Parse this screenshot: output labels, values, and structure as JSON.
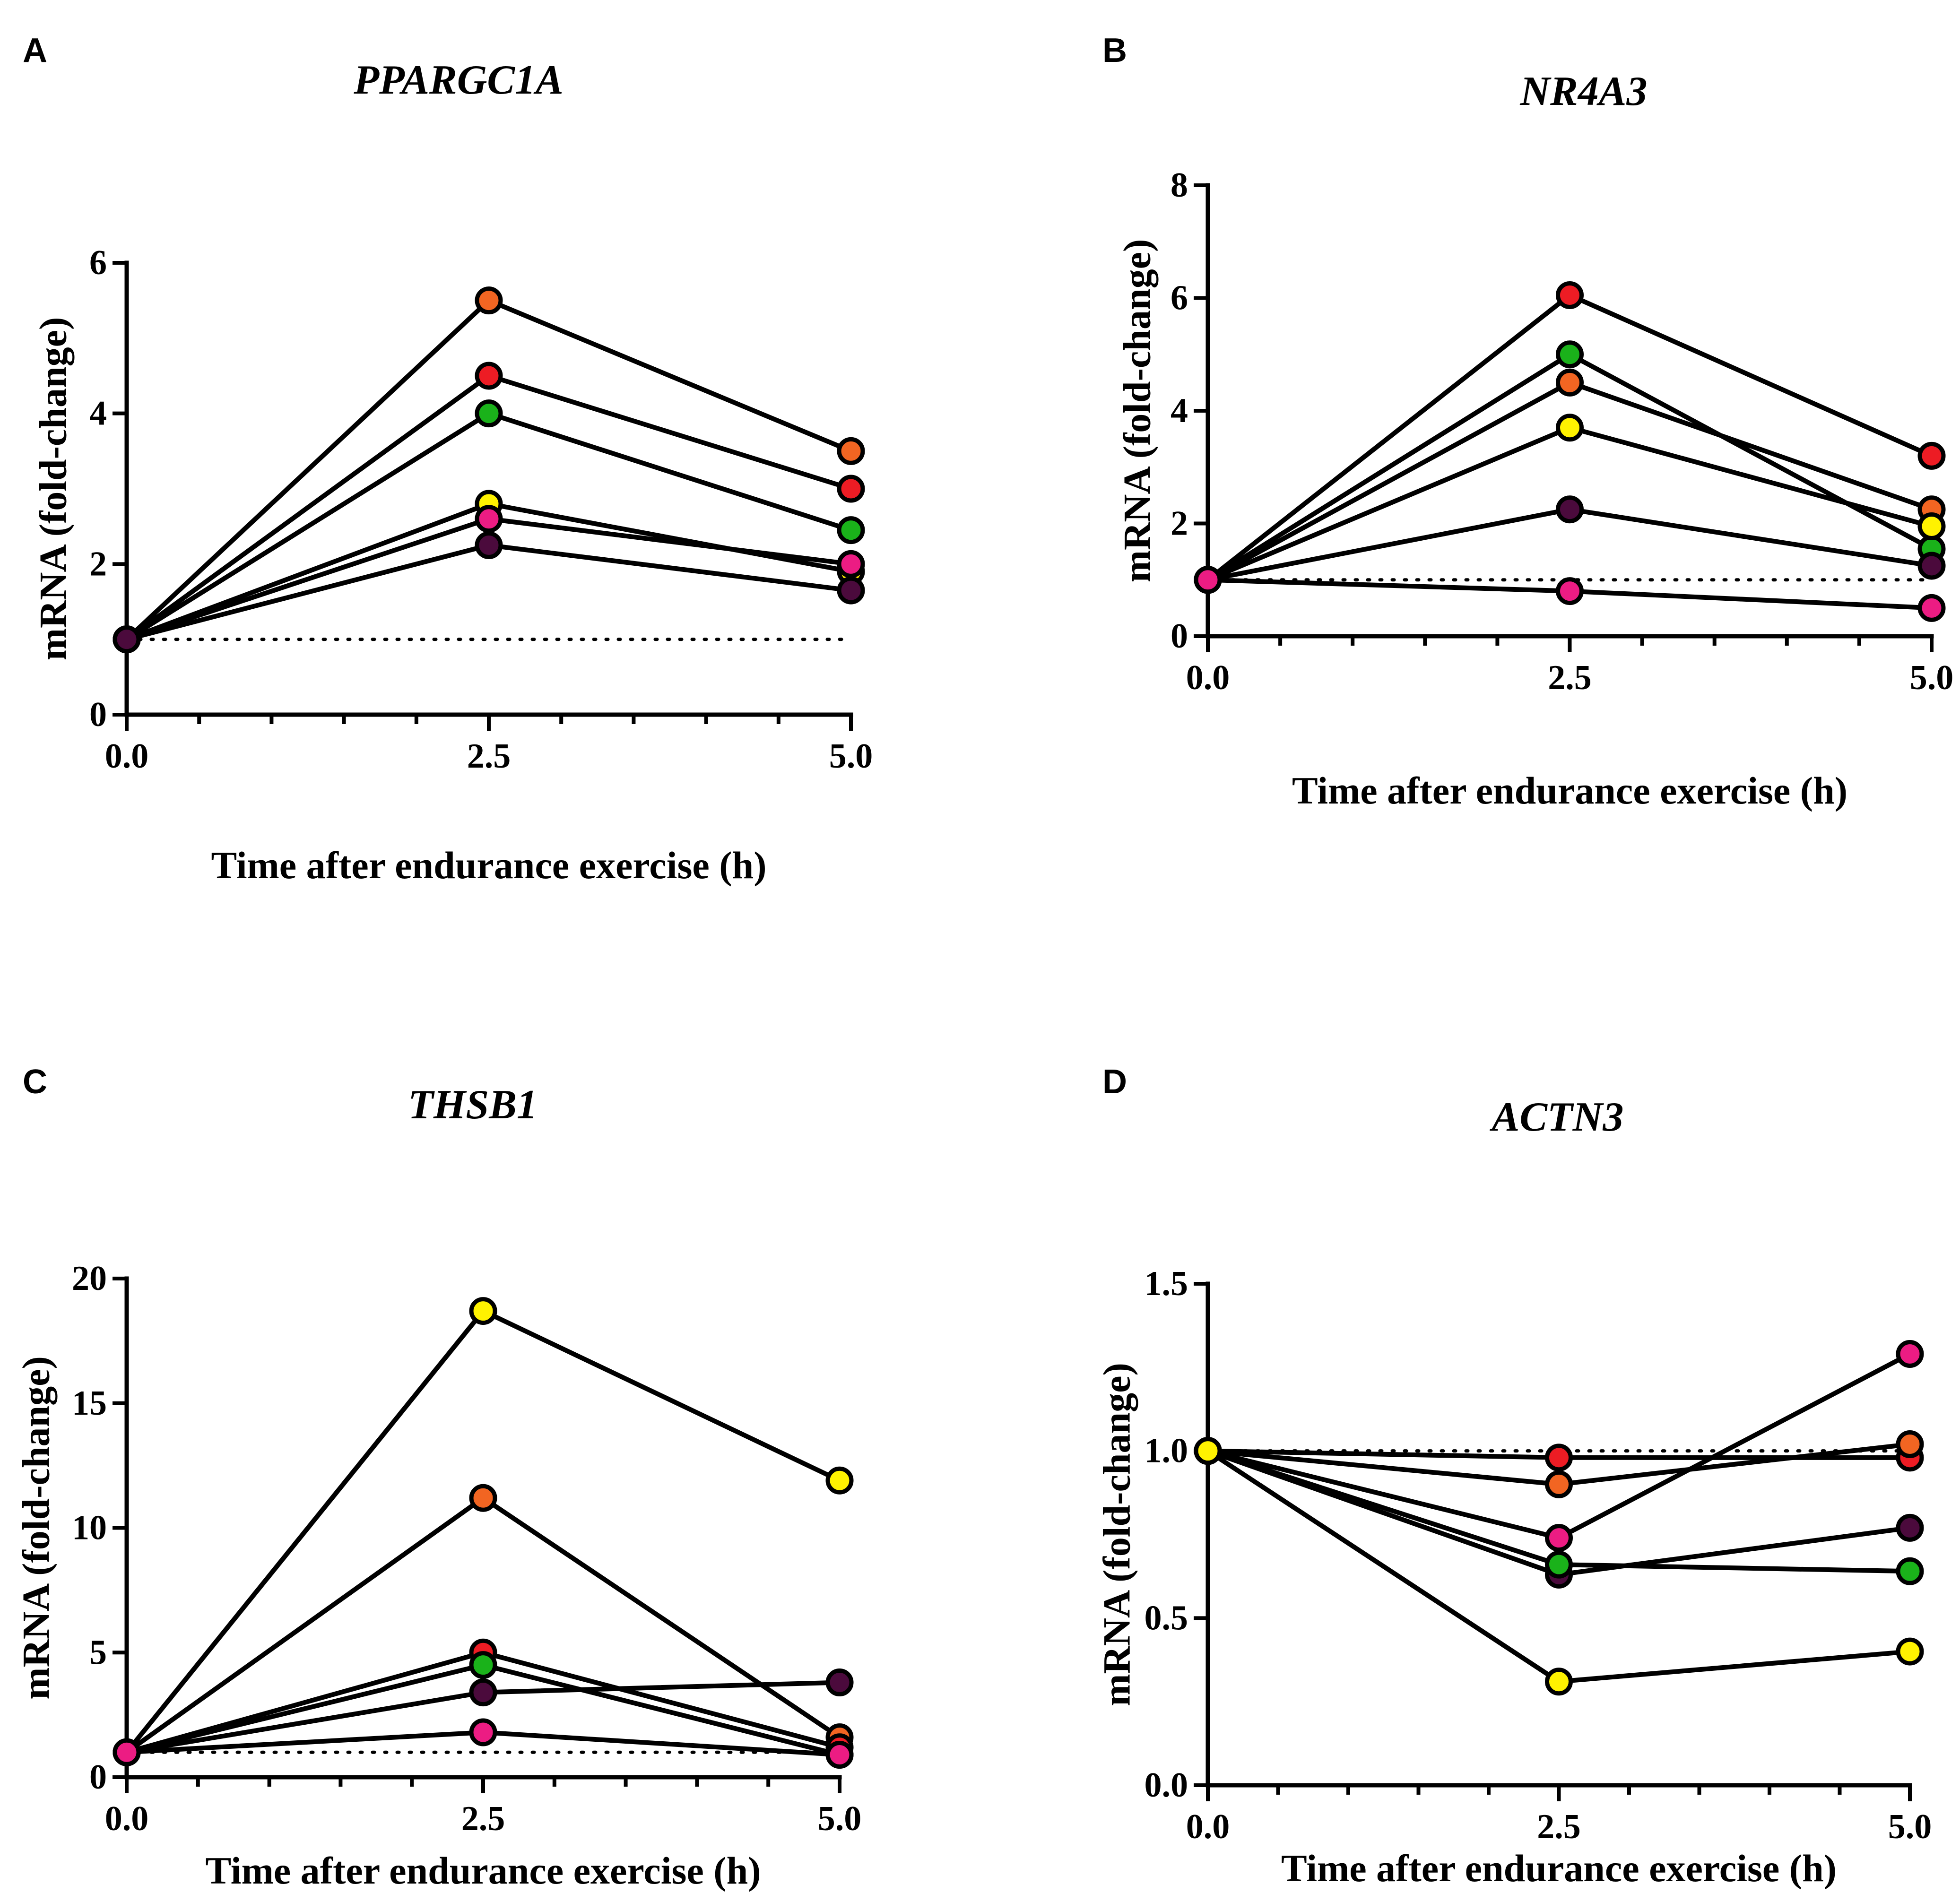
{
  "chart_data": [
    {
      "type": "line",
      "panel": "A",
      "title": "PPARGC1A",
      "xlabel": "Time after endurance exercise (h)",
      "ylabel": "mRNA (fold-change)",
      "x": [
        0.0,
        2.5,
        5.0
      ],
      "xticks": [
        "0.0",
        "2.5",
        "5.0"
      ],
      "ylim": [
        0,
        6
      ],
      "yticks": [
        0,
        2,
        4,
        6
      ],
      "ytick_labels": [
        "0",
        "2",
        "4",
        "6"
      ],
      "reference_line": 1,
      "series": [
        {
          "name": "orange",
          "color": "#f26522",
          "values": [
            1,
            5.5,
            3.5
          ]
        },
        {
          "name": "red",
          "color": "#ed1c24",
          "values": [
            1,
            4.5,
            3.0
          ]
        },
        {
          "name": "green",
          "color": "#1ab21a",
          "values": [
            1,
            4.0,
            2.45
          ]
        },
        {
          "name": "yellow",
          "color": "#fff200",
          "values": [
            1,
            2.8,
            1.9
          ]
        },
        {
          "name": "pink",
          "color": "#ec1c83",
          "values": [
            1,
            2.6,
            2.0
          ]
        },
        {
          "name": "purple",
          "color": "#4b0a3c",
          "values": [
            1,
            2.25,
            1.65
          ]
        }
      ]
    },
    {
      "type": "line",
      "panel": "B",
      "title": "NR4A3",
      "xlabel": "Time after endurance exercise (h)",
      "ylabel": "mRNA (fold-change)",
      "x": [
        0.0,
        2.5,
        5.0
      ],
      "xticks": [
        "0.0",
        "2.5",
        "5.0"
      ],
      "ylim": [
        0,
        8
      ],
      "yticks": [
        0,
        2,
        4,
        6,
        8
      ],
      "ytick_labels": [
        "0",
        "2",
        "4",
        "6",
        "8"
      ],
      "reference_line": 1,
      "series": [
        {
          "name": "red",
          "color": "#ed1c24",
          "values": [
            1,
            6.05,
            3.2
          ]
        },
        {
          "name": "green",
          "color": "#1ab21a",
          "values": [
            1,
            5.0,
            1.55
          ]
        },
        {
          "name": "orange",
          "color": "#f26522",
          "values": [
            1,
            4.5,
            2.25
          ]
        },
        {
          "name": "yellow",
          "color": "#fff200",
          "values": [
            1,
            3.7,
            1.95
          ]
        },
        {
          "name": "purple",
          "color": "#4b0a3c",
          "values": [
            1,
            2.25,
            1.25
          ]
        },
        {
          "name": "pink",
          "color": "#ec1c83",
          "values": [
            1,
            0.8,
            0.5
          ]
        }
      ]
    },
    {
      "type": "line",
      "panel": "C",
      "title": "THSB1",
      "xlabel": "Time after endurance exercise (h)",
      "ylabel": "mRNA (fold-change)",
      "x": [
        0.0,
        2.5,
        5.0
      ],
      "xticks": [
        "0.0",
        "2.5",
        "5.0"
      ],
      "ylim": [
        0,
        20
      ],
      "yticks": [
        0,
        5,
        10,
        15,
        20
      ],
      "ytick_labels": [
        "0",
        "5",
        "10",
        "15",
        "20"
      ],
      "reference_line": 1,
      "series": [
        {
          "name": "yellow",
          "color": "#fff200",
          "values": [
            1,
            18.7,
            11.9
          ]
        },
        {
          "name": "orange",
          "color": "#f26522",
          "values": [
            1,
            11.2,
            1.6
          ]
        },
        {
          "name": "red",
          "color": "#ed1c24",
          "values": [
            1,
            5.0,
            1.2
          ]
        },
        {
          "name": "green",
          "color": "#1ab21a",
          "values": [
            1,
            4.5,
            0.9
          ]
        },
        {
          "name": "purple",
          "color": "#4b0a3c",
          "values": [
            1,
            3.4,
            3.8
          ]
        },
        {
          "name": "pink",
          "color": "#ec1c83",
          "values": [
            1,
            1.8,
            0.9
          ]
        }
      ]
    },
    {
      "type": "line",
      "panel": "D",
      "title": "ACTN3",
      "xlabel": "Time after endurance exercise (h)",
      "ylabel": "mRNA (fold-change)",
      "x": [
        0.0,
        2.5,
        5.0
      ],
      "xticks": [
        "0.0",
        "2.5",
        "5.0"
      ],
      "ylim": [
        0,
        1.5
      ],
      "yticks": [
        0,
        0.5,
        1.0,
        1.5
      ],
      "ytick_labels": [
        "0.0",
        "0.5",
        "1.0",
        "1.5"
      ],
      "reference_line": 1,
      "series": [
        {
          "name": "red",
          "color": "#ed1c24",
          "values": [
            1,
            0.98,
            0.98
          ]
        },
        {
          "name": "orange",
          "color": "#f26522",
          "values": [
            1,
            0.9,
            1.02
          ]
        },
        {
          "name": "pink",
          "color": "#ec1c83",
          "values": [
            1,
            0.74,
            1.29
          ]
        },
        {
          "name": "purple",
          "color": "#4b0a3c",
          "values": [
            1,
            0.63,
            0.77
          ]
        },
        {
          "name": "green",
          "color": "#1ab21a",
          "values": [
            1,
            0.66,
            0.64
          ]
        },
        {
          "name": "yellow",
          "color": "#fff200",
          "values": [
            1,
            0.31,
            0.4
          ]
        }
      ]
    }
  ]
}
